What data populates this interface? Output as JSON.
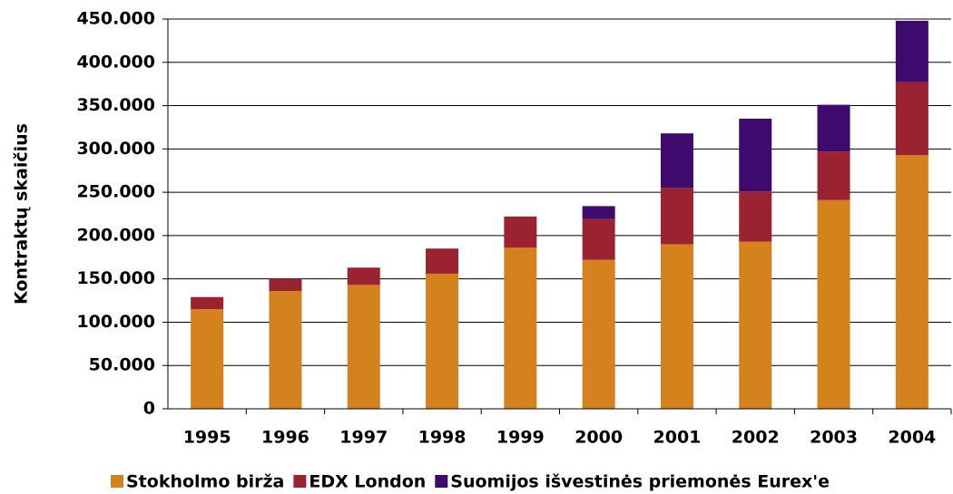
{
  "chart_data": {
    "type": "bar",
    "stacked": true,
    "y_label": "Kontraktų skaičius",
    "categories": [
      "1995",
      "1996",
      "1997",
      "1998",
      "1999",
      "2000",
      "2001",
      "2002",
      "2003",
      "2004"
    ],
    "series": [
      {
        "name": "Stokholmo birža",
        "color": "#d4821e",
        "values": [
          115000,
          136000,
          143000,
          156000,
          186000,
          172000,
          190000,
          193000,
          241000,
          293000
        ]
      },
      {
        "name": "EDX London",
        "color": "#9b2230",
        "values": [
          14000,
          14000,
          20000,
          29000,
          36000,
          47000,
          65000,
          58000,
          56000,
          84000
        ]
      },
      {
        "name": "Suomijos išvestinės priemonės Eurex'e",
        "color": "#3f0a6e",
        "values": [
          0,
          0,
          0,
          0,
          0,
          15000,
          63000,
          84000,
          54000,
          71000
        ]
      }
    ],
    "ylim": [
      0,
      450000
    ],
    "yticks": [
      0,
      {
        "value": 50000,
        "label": "50.000"
      },
      {
        "value": 100000,
        "label": "100.000"
      },
      {
        "value": 150000,
        "label": "150.000"
      },
      {
        "value": 200000,
        "label": "200.000"
      },
      {
        "value": 250000,
        "label": "250.000"
      },
      {
        "value": 300000,
        "label": "300.000"
      },
      {
        "value": 350000,
        "label": "350.000"
      },
      {
        "value": 400000,
        "label": "400.000"
      },
      {
        "value": 450000,
        "label": "450.000"
      }
    ],
    "grid": true,
    "legend": "bottom"
  }
}
